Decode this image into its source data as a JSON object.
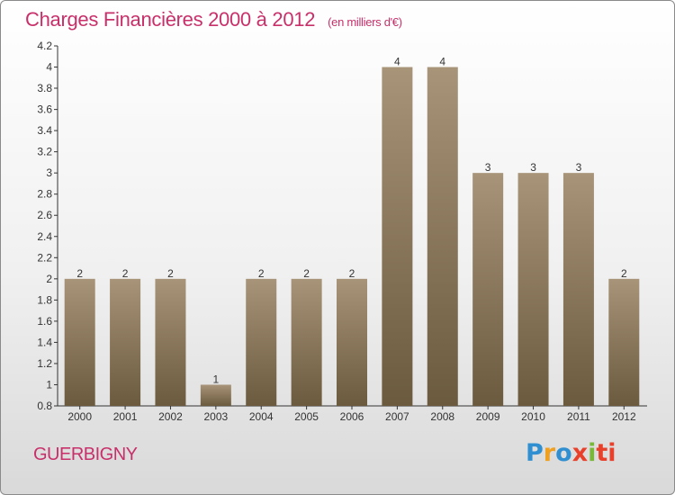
{
  "header": {
    "title": "Charges Financières 2000 à 2012",
    "subtitle": "(en milliers d'€)"
  },
  "footer": {
    "commune": "GUERBIGNY",
    "logo_letters": [
      "P",
      "r",
      "o",
      "x",
      "i",
      "ti"
    ]
  },
  "colors": {
    "title": "#c8306a",
    "bar_top": "#a89478",
    "bar_bottom": "#6b5a3e",
    "logo_blue": "#2f8fd0",
    "logo_orange": "#f0a020",
    "logo_red": "#e8402a",
    "logo_green": "#7ab83a"
  },
  "chart_data": {
    "type": "bar",
    "title": "Charges Financières 2000 à 2012",
    "subtitle": "(en milliers d'€)",
    "categories": [
      "2000",
      "2001",
      "2002",
      "2003",
      "2004",
      "2005",
      "2006",
      "2007",
      "2008",
      "2009",
      "2010",
      "2011",
      "2012"
    ],
    "values": [
      2,
      2,
      2,
      1,
      2,
      2,
      2,
      4,
      4,
      3,
      3,
      3,
      2
    ],
    "ylim": [
      0.8,
      4.2
    ],
    "yticks": [
      0.8,
      1,
      1.2,
      1.4,
      1.6,
      1.8,
      2,
      2.2,
      2.4,
      2.6,
      2.8,
      3,
      3.2,
      3.4,
      3.6,
      3.8,
      4,
      4.2
    ],
    "ytick_labels": [
      "0.8",
      "1",
      "1.2",
      "1.4",
      "1.6",
      "1.8",
      "2",
      "2.2",
      "2.4",
      "2.6",
      "2.8",
      "3",
      "3.2",
      "3.4",
      "3.6",
      "3.8",
      "4",
      "4.2"
    ],
    "xlabel": "",
    "ylabel": "",
    "grid": false,
    "legend": "none"
  }
}
